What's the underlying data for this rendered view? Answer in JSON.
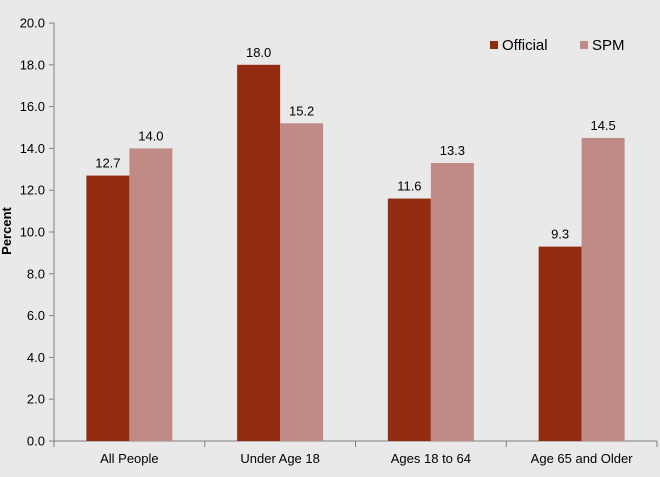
{
  "chart_data": {
    "type": "bar",
    "categories": [
      "All People",
      "Under Age 18",
      "Ages 18 to 64",
      "Age 65 and Older"
    ],
    "series": [
      {
        "name": "Official",
        "values": [
          12.7,
          18.0,
          11.6,
          9.3
        ],
        "color": "#922b10"
      },
      {
        "name": "SPM",
        "values": [
          14.0,
          15.2,
          13.3,
          14.5
        ],
        "color": "#c08a86"
      }
    ],
    "ylabel": "Percent",
    "ylim": [
      0,
      20
    ],
    "yticks": [
      0,
      2,
      4,
      6,
      8,
      10,
      12,
      14,
      16,
      18,
      20
    ],
    "ytick_labels": [
      "0.0",
      "2.0",
      "4.0",
      "6.0",
      "8.0",
      "10.0",
      "12.0",
      "14.0",
      "16.0",
      "18.0",
      "20.0"
    ],
    "data_labels": [
      [
        "12.7",
        "18.0",
        "11.6",
        "9.3"
      ],
      [
        "14.0",
        "15.2",
        "13.3",
        "14.5"
      ]
    ],
    "grid": false,
    "legend_position": "top-right"
  },
  "colors": {
    "background": "#e9e9e9",
    "axis": "#808080"
  }
}
